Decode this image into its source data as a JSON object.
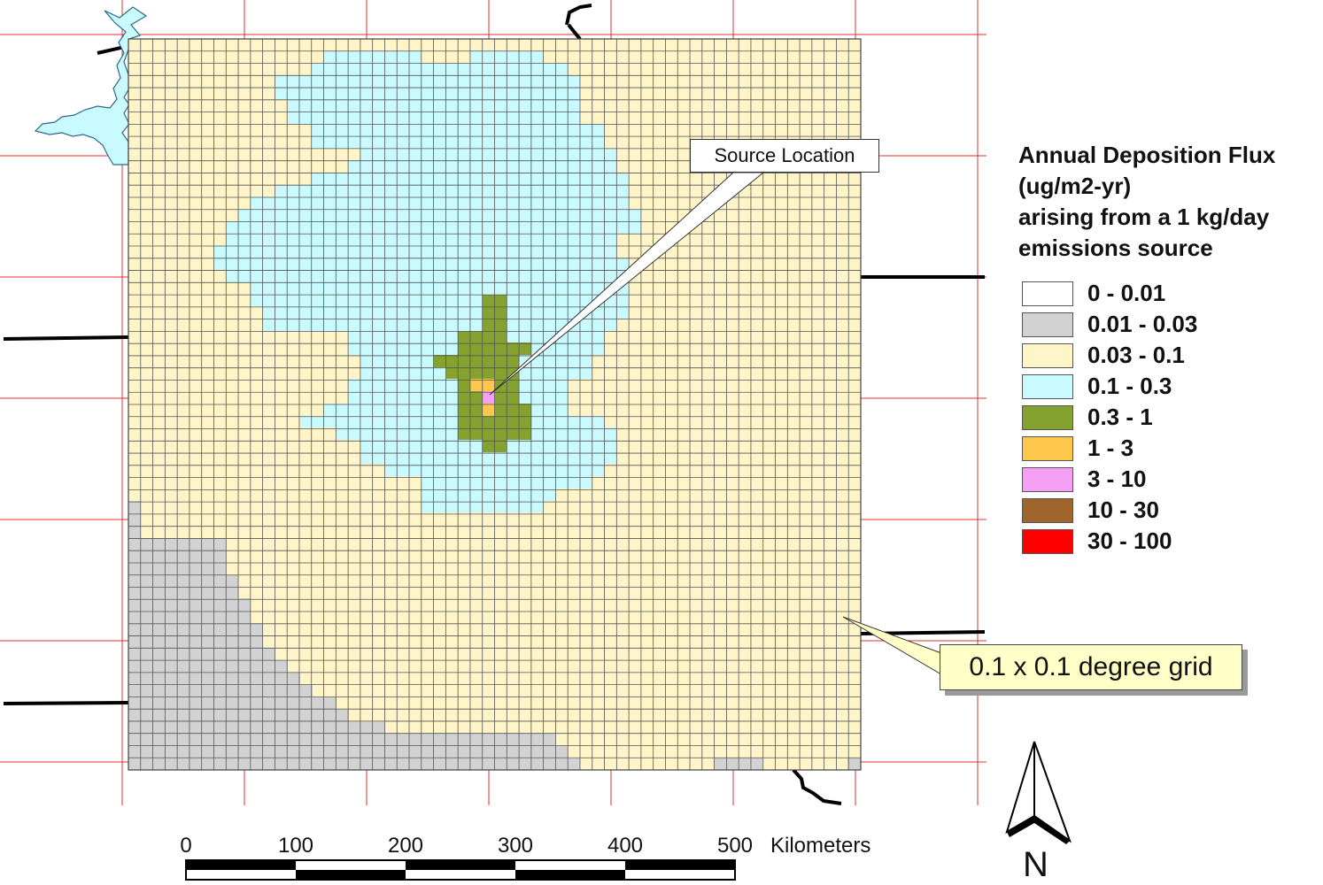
{
  "legend": {
    "title_lines": [
      "Annual Deposition Flux",
      "(ug/m2-yr)",
      "arising from a 1 kg/day",
      "emissions source"
    ],
    "classes": [
      {
        "label": "0 - 0.01",
        "color": "#ffffff"
      },
      {
        "label": "0.01 - 0.03",
        "color": "#d2d2d2"
      },
      {
        "label": "0.03 - 0.1",
        "color": "#fff5c8"
      },
      {
        "label": "0.1 - 0.3",
        "color": "#c8faff"
      },
      {
        "label": "0.3 - 1",
        "color": "#86a22e"
      },
      {
        "label": "1 - 3",
        "color": "#ffc84d"
      },
      {
        "label": "3 - 10",
        "color": "#f5a0f5"
      },
      {
        "label": "10 - 30",
        "color": "#a0642d"
      },
      {
        "label": "30 - 100",
        "color": "#ff0000"
      }
    ]
  },
  "callouts": {
    "source_location": "Source Location",
    "grid": "0.1 x 0.1 degree grid"
  },
  "scale_bar": {
    "ticks": [
      "0",
      "100",
      "200",
      "300",
      "400",
      "500"
    ],
    "unit": "Kilometers"
  },
  "north_arrow": {
    "label": "N",
    "icon": "north-arrow-icon"
  },
  "colors": {
    "graticule": "#e03030",
    "gridline": "#555555",
    "water": "#c8faff"
  }
}
